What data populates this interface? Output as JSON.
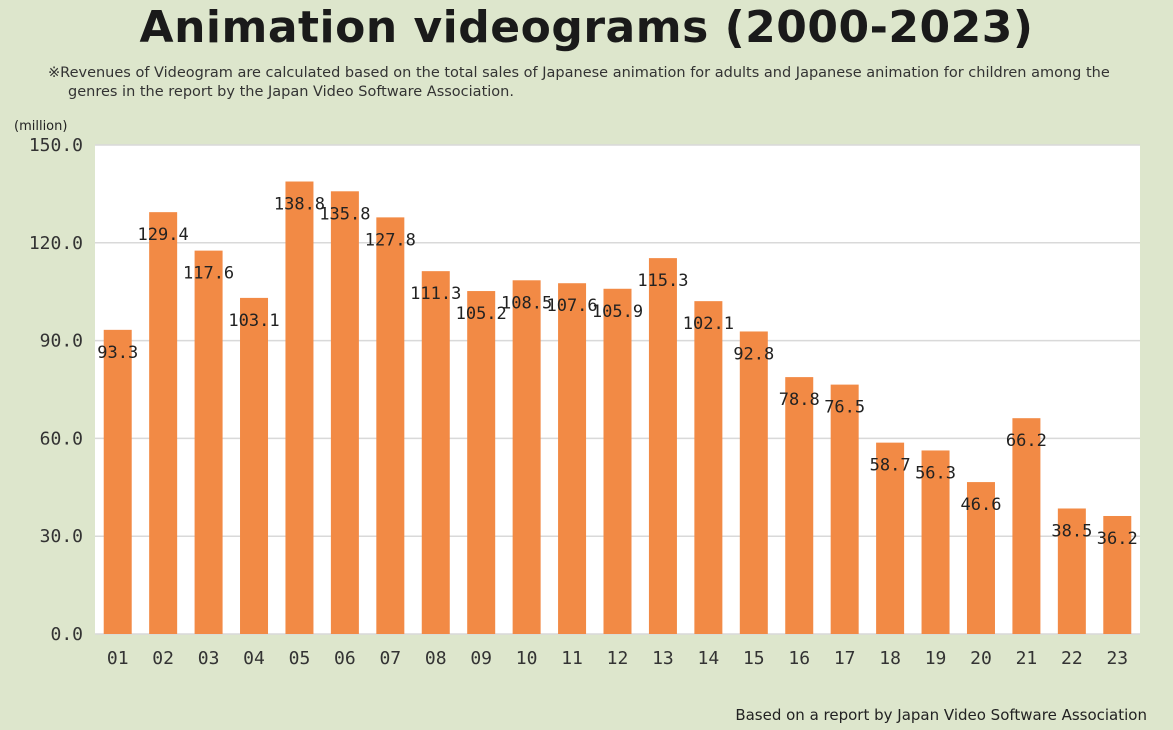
{
  "title": "Animation videograms (2000-2023)",
  "note_line1": "※Revenues of Videogram are calculated based on the total sales of Japanese animation for adults and Japanese animation for children among the",
  "note_line2": "genres in the report by the Japan Video Software Association.",
  "unit_label": "(million)",
  "source": "Based on a report by Japan Video Software Association",
  "colors": {
    "bar": "#f28a45",
    "plot_bg": "#ffffff",
    "grid": "#d9d9d9",
    "page_bg": "#dde6cc"
  },
  "chart_data": {
    "type": "bar",
    "categories": [
      "01",
      "02",
      "03",
      "04",
      "05",
      "06",
      "07",
      "08",
      "09",
      "10",
      "11",
      "12",
      "13",
      "14",
      "15",
      "16",
      "17",
      "18",
      "19",
      "20",
      "21",
      "22",
      "23"
    ],
    "values": [
      93.3,
      129.4,
      117.6,
      103.1,
      138.8,
      135.8,
      127.8,
      111.3,
      105.2,
      108.5,
      107.6,
      105.9,
      115.3,
      102.1,
      92.8,
      78.8,
      76.5,
      58.7,
      56.3,
      46.6,
      66.2,
      38.5,
      36.2
    ],
    "labels": [
      "93.3",
      "129.4",
      "117.6",
      "103.1",
      "138.8",
      "135.8",
      "127.8",
      "111.3",
      "105.2",
      "108.5",
      "107.6",
      "105.9",
      "115.3",
      "102.1",
      "92.8",
      "78.8",
      "76.5",
      "58.7",
      "56.3",
      "46.6",
      "66.2",
      "38.5",
      "36.2"
    ],
    "yticks": [
      "0.0",
      "30.0",
      "60.0",
      "90.0",
      "120.0",
      "150.0"
    ],
    "ylim": [
      0,
      150
    ],
    "grid": true,
    "title": "Animation videograms (2000-2023)",
    "ylabel": "(million)"
  }
}
